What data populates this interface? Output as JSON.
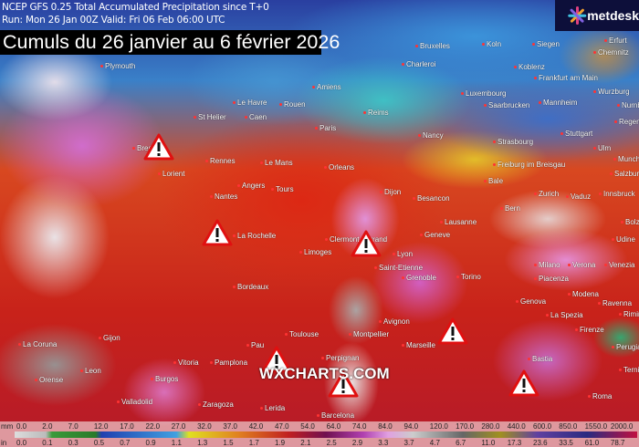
{
  "header": {
    "model": "NCEP GFS 0.25",
    "product": "Total Accumulated Precipitation since T+0",
    "run": "Run: Mon 26 Jan 00Z Valid: Fri 06 Feb 06:00 UTC",
    "title": "Cumuls du 26 janvier au 6 février 2026"
  },
  "logo": {
    "text": "metdesk"
  },
  "watermark": "WXCHARTS.COM",
  "cities": [
    "Plymouth",
    "St Helier",
    "Caen",
    "Le Havre",
    "Rouen",
    "Amiens",
    "Bruxelles",
    "Charleroi",
    "Koln",
    "Siegen",
    "Erfurt",
    "Chemnitz",
    "Koblenz",
    "Frankfurt am Main",
    "Luxembourg",
    "Wurzburg",
    "Mannheim",
    "Saarbrucken",
    "Nurnberg",
    "Reims",
    "Paris",
    "Nancy",
    "Strasbourg",
    "Stuttgart",
    "Regensburg",
    "Ulm",
    "Munchen",
    "Brest",
    "Lorient",
    "Rennes",
    "Le Mans",
    "Orleans",
    "Freiburg im Breisgau",
    "Salzburg",
    "Nantes",
    "Angers",
    "Tours",
    "Dijon",
    "Besancon",
    "Bale",
    "Zurich",
    "Vaduz",
    "Innsbruck",
    "Bern",
    "La Rochelle",
    "Lausanne",
    "Geneve",
    "Bolzano",
    "Limoges",
    "Clermont-Ferrand",
    "Lyon",
    "Saint-Etienne",
    "Udine",
    "Grenoble",
    "Milano",
    "Verona",
    "Venezia",
    "Torino",
    "Piacenza",
    "Bordeaux",
    "Modena",
    "Ravenna",
    "Genova",
    "La Spezia",
    "Rimini",
    "Avignon",
    "Toulouse",
    "Montpellier",
    "Marseille",
    "Firenze",
    "Pau",
    "Perugia",
    "La Coruna",
    "Gijon",
    "Vitoria",
    "Pamplona",
    "Perpignan",
    "Orense",
    "Leon",
    "Burgos",
    "Bastia",
    "Terni",
    "Valladolid",
    "Zaragoza",
    "Lerida",
    "Barcelona",
    "Roma"
  ],
  "warning_icon": "warning-triangle-icon",
  "legend": {
    "mm_label": "mm",
    "in_label": "in",
    "mm": [
      "0.0",
      "2.0",
      "7.0",
      "12.0",
      "17.0",
      "22.0",
      "27.0",
      "32.0",
      "37.0",
      "42.0",
      "47.0",
      "54.0",
      "64.0",
      "74.0",
      "84.0",
      "94.0",
      "120.0",
      "170.0",
      "280.0",
      "440.0",
      "600.0",
      "850.0",
      "1550.0",
      "2000.0"
    ],
    "in": [
      "0.0",
      "0.1",
      "0.3",
      "0.5",
      "0.7",
      "0.9",
      "1.1",
      "1.3",
      "1.5",
      "1.7",
      "1.9",
      "2.1",
      "2.5",
      "2.9",
      "3.3",
      "3.7",
      "4.7",
      "6.7",
      "11.0",
      "17.3",
      "23.6",
      "33.5",
      "61.0",
      "78.7"
    ]
  },
  "colors": {
    "title_bg": "#000000",
    "logo_bg": "#0d0f3a",
    "warning_fill": "#ffffff",
    "warning_stroke": "#e01010"
  }
}
